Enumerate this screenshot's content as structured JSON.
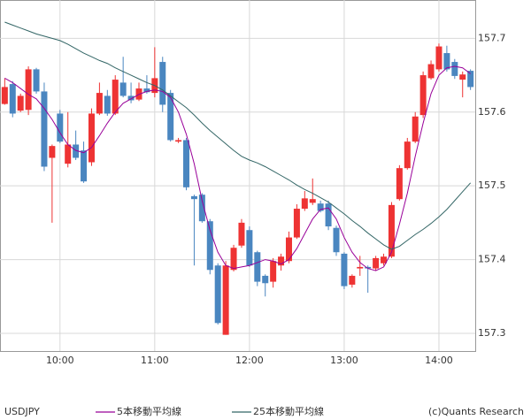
{
  "chart_data": {
    "type": "candlestick",
    "x": [
      565,
      570,
      575,
      580,
      585,
      590,
      595,
      600,
      605,
      610,
      615,
      620,
      625,
      630,
      635,
      640,
      645,
      650,
      655,
      660,
      665,
      670,
      675,
      680,
      685,
      690,
      695,
      700,
      705,
      710,
      715,
      720,
      725,
      730,
      735,
      740,
      745,
      750,
      755,
      760,
      765,
      770,
      775,
      780,
      785,
      790,
      795,
      800,
      805,
      810,
      815,
      820,
      825,
      830,
      835,
      840,
      845,
      850,
      855,
      860
    ],
    "xlim": [
      562,
      863
    ],
    "xticks": [
      {
        "value": 600,
        "label": "10:00"
      },
      {
        "value": 660,
        "label": "11:00"
      },
      {
        "value": 720,
        "label": "12:00"
      },
      {
        "value": 780,
        "label": "13:00"
      },
      {
        "value": 840,
        "label": "14:00"
      }
    ],
    "ylim": [
      157.276,
      157.752
    ],
    "yticks": [
      157.3,
      157.4,
      157.5,
      157.6,
      157.7
    ],
    "grid": true,
    "source": "(c)Quants Research",
    "series": [
      {
        "name": "USDJPY",
        "up_color": "#ee3333",
        "down_color": "#4a86c0",
        "open": [
          157.611,
          157.638,
          157.602,
          157.603,
          157.658,
          157.628,
          157.538,
          157.598,
          157.53,
          157.556,
          157.548,
          157.532,
          157.598,
          157.622,
          157.598,
          157.64,
          157.622,
          157.617,
          157.632,
          157.626,
          157.668,
          157.626,
          157.56,
          157.562,
          157.486,
          157.488,
          157.452,
          157.392,
          157.298,
          157.386,
          157.419,
          157.44,
          157.41,
          157.378,
          157.37,
          157.392,
          157.398,
          157.43,
          157.469,
          157.477,
          157.476,
          157.476,
          157.443,
          157.408,
          157.366,
          157.388,
          157.39,
          157.388,
          157.395,
          157.404,
          157.482,
          157.524,
          157.56,
          157.596,
          157.646,
          157.658,
          157.68,
          157.668,
          157.644,
          157.656
        ],
        "high": [
          157.646,
          157.642,
          157.625,
          157.662,
          157.66,
          157.64,
          157.556,
          157.603,
          157.6,
          157.575,
          157.56,
          157.605,
          157.64,
          157.63,
          157.65,
          157.675,
          157.64,
          157.64,
          157.65,
          157.688,
          157.675,
          157.63,
          157.565,
          157.565,
          157.488,
          157.49,
          157.455,
          157.395,
          157.398,
          157.42,
          157.455,
          157.445,
          157.412,
          157.38,
          157.402,
          157.408,
          157.438,
          157.475,
          157.493,
          157.51,
          157.48,
          157.48,
          157.446,
          157.41,
          157.38,
          157.405,
          157.392,
          157.405,
          157.408,
          157.478,
          157.528,
          157.565,
          157.6,
          157.655,
          157.67,
          157.693,
          157.69,
          157.672,
          157.655,
          157.658
        ],
        "low": [
          157.61,
          157.593,
          157.6,
          157.596,
          157.625,
          157.52,
          157.45,
          157.558,
          157.525,
          157.535,
          157.504,
          157.527,
          157.596,
          157.595,
          157.596,
          157.62,
          157.612,
          157.615,
          157.625,
          157.62,
          157.6,
          157.56,
          157.558,
          157.494,
          157.392,
          157.45,
          157.38,
          157.312,
          157.298,
          157.384,
          157.416,
          157.39,
          157.364,
          157.35,
          157.362,
          157.385,
          157.395,
          157.428,
          157.466,
          157.474,
          157.464,
          157.44,
          157.405,
          157.36,
          157.362,
          157.378,
          157.355,
          157.385,
          157.392,
          157.402,
          157.48,
          157.522,
          157.558,
          157.592,
          157.644,
          157.655,
          157.655,
          157.645,
          157.62,
          157.63
        ],
        "close": [
          157.634,
          157.598,
          157.622,
          157.658,
          157.628,
          157.526,
          157.554,
          157.56,
          157.556,
          157.538,
          157.506,
          157.598,
          157.626,
          157.598,
          157.644,
          157.622,
          157.616,
          157.632,
          157.627,
          157.646,
          157.61,
          157.562,
          157.562,
          157.498,
          157.482,
          157.452,
          157.386,
          157.314,
          157.392,
          157.416,
          157.45,
          157.392,
          157.37,
          157.368,
          157.398,
          157.404,
          157.43,
          157.469,
          157.483,
          157.482,
          157.466,
          157.445,
          157.41,
          157.364,
          157.378,
          157.39,
          157.388,
          157.402,
          157.404,
          157.474,
          157.524,
          157.56,
          157.594,
          157.65,
          157.665,
          157.689,
          157.658,
          157.649,
          157.651,
          157.634
        ]
      },
      {
        "name": "5本移動平均線",
        "color": "#990099",
        "values": [
          157.646,
          157.64,
          157.632,
          157.624,
          157.618,
          157.605,
          157.59,
          157.572,
          157.556,
          157.548,
          157.545,
          157.552,
          157.568,
          157.585,
          157.6,
          157.612,
          157.618,
          157.624,
          157.628,
          157.63,
          157.628,
          157.62,
          157.6,
          157.57,
          157.53,
          157.48,
          157.44,
          157.41,
          157.392,
          157.388,
          157.39,
          157.392,
          157.396,
          157.4,
          157.398,
          157.394,
          157.4,
          157.415,
          157.435,
          157.455,
          157.468,
          157.47,
          157.455,
          157.43,
          157.41,
          157.396,
          157.388,
          157.385,
          157.39,
          157.41,
          157.448,
          157.49,
          157.54,
          157.585,
          157.625,
          157.65,
          157.66,
          157.662,
          157.66,
          157.652
        ]
      },
      {
        "name": "25本移動平均線",
        "color": "#336666",
        "values": [
          157.722,
          157.718,
          157.714,
          157.71,
          157.706,
          157.703,
          157.7,
          157.697,
          157.692,
          157.686,
          157.68,
          157.675,
          157.67,
          157.666,
          157.66,
          157.655,
          157.65,
          157.645,
          157.64,
          157.636,
          157.63,
          157.622,
          157.614,
          157.606,
          157.596,
          157.585,
          157.575,
          157.566,
          157.557,
          157.548,
          157.54,
          157.535,
          157.531,
          157.526,
          157.52,
          157.514,
          157.508,
          157.501,
          157.495,
          157.49,
          157.484,
          157.478,
          157.47,
          157.462,
          157.453,
          157.445,
          157.436,
          157.428,
          157.42,
          157.414,
          157.418,
          157.426,
          157.434,
          157.441,
          157.449,
          157.458,
          157.468,
          157.48,
          157.492,
          157.504
        ]
      }
    ]
  }
}
